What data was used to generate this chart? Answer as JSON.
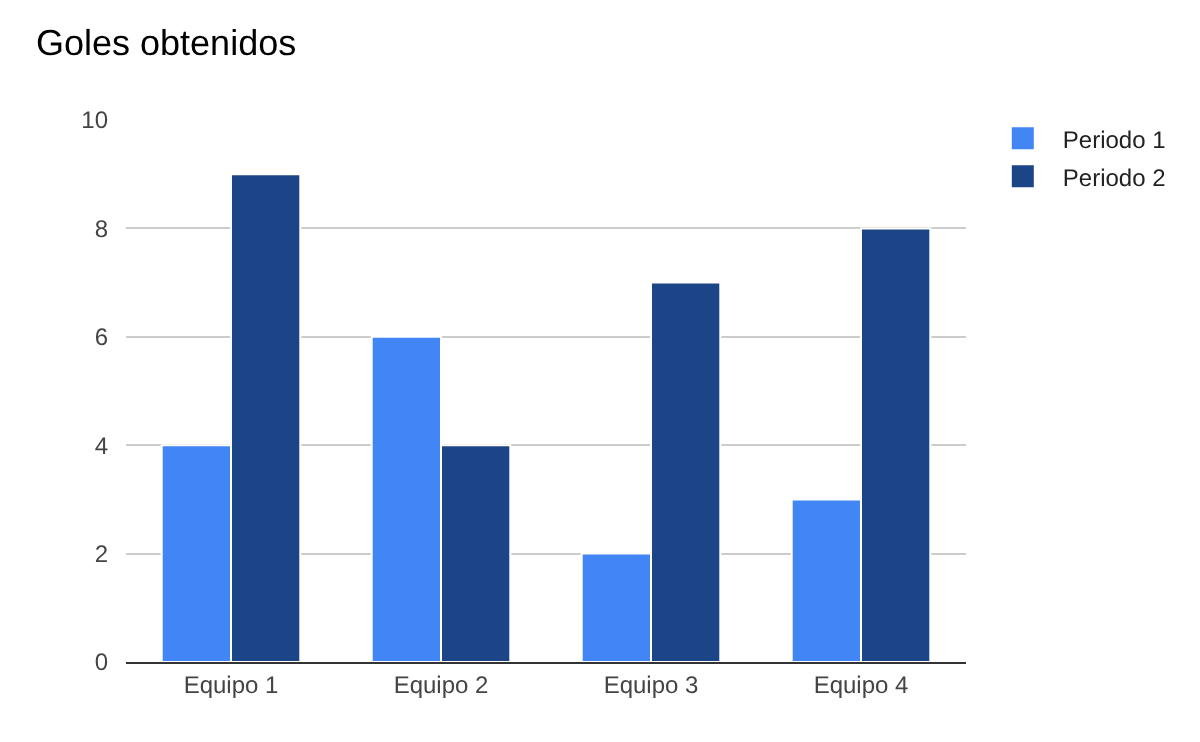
{
  "chart_data": {
    "type": "bar",
    "title": "Goles obtenidos",
    "categories": [
      "Equipo 1",
      "Equipo 2",
      "Equipo 3",
      "Equipo 4"
    ],
    "series": [
      {
        "name": "Periodo 1",
        "color": "#4285f4",
        "values": [
          4,
          6,
          2,
          3
        ]
      },
      {
        "name": "Periodo 2",
        "color": "#1c4587",
        "values": [
          9,
          4,
          7,
          8
        ]
      }
    ],
    "ylim": [
      0,
      10
    ],
    "yticks": [
      0,
      2,
      4,
      6,
      8,
      10
    ],
    "grid": "y",
    "legend": "top right"
  }
}
